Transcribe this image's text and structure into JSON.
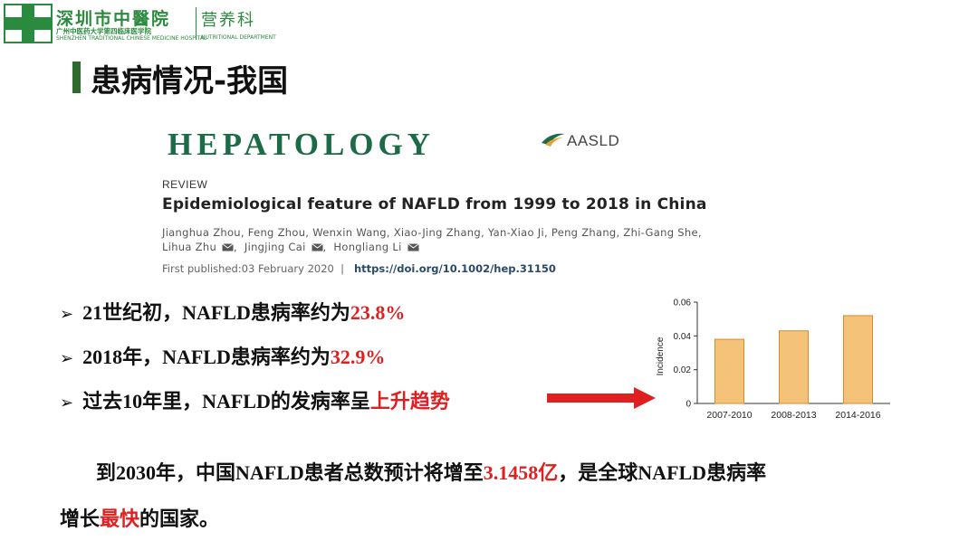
{
  "header": {
    "hospital_name": "深圳市中醫院",
    "hospital_sub1": "广州中医药大学第四临床医学院",
    "hospital_sub2": "SHENZHEN TRADITIONAL CHINESE MEDICINE HOSPITAL",
    "department": "营养科",
    "department_sub": "NUTRITIONAL DEPARTMENT",
    "brand_color": "#2a8a3e"
  },
  "slide": {
    "title": "患病情况-我国"
  },
  "paper": {
    "journal": "HEPATOLOGY",
    "publisher": "AASLD",
    "section": "REVIEW",
    "title": "Epidemiological feature of NAFLD from 1999 to 2018 in China",
    "authors_line1": "Jianghua Zhou, Feng Zhou, Wenxin Wang, Xiao-Jing Zhang, Yan-Xiao Ji, Peng Zhang, Zhi-Gang She,",
    "author_a": "Lihua Zhu",
    "author_b": "Jingjing Cai",
    "author_c": "Hongliang Li",
    "published_label": "First published:",
    "published_date": "03 February 2020",
    "separator": "|",
    "doi": "https://doi.org/10.1002/hep.31150"
  },
  "bullets": [
    {
      "pre": "21世纪初，NAFLD患病率约为",
      "highlight": "23.8%"
    },
    {
      "pre": "2018年，NAFLD患病率约为",
      "highlight": "32.9%"
    },
    {
      "pre": "过去10年里，NAFLD的发病率呈",
      "highlight": "上升趋势"
    }
  ],
  "paragraph": {
    "part1": "到2030年，中国NAFLD患者总数预计将增至",
    "highlight1": "3.1458亿",
    "part2": "，是全球NAFLD患病率",
    "part3": "增长",
    "highlight2": "最快",
    "part4": "的国家。"
  },
  "colors": {
    "highlight": "#e02020",
    "title_bar": "#2f6b2f",
    "journal": "#1b6b46",
    "bar_fill": "#f5c27a",
    "bar_stroke": "#d98a2b"
  },
  "chart_data": {
    "type": "bar",
    "categories": [
      "2007-2010",
      "2008-2013",
      "2014-2016"
    ],
    "values": [
      0.038,
      0.043,
      0.052
    ],
    "ylabel": "Incidence",
    "ylim": [
      0,
      0.06
    ],
    "yticks": [
      "0",
      "0.02",
      "0.04",
      "0.06"
    ],
    "grid": false
  }
}
